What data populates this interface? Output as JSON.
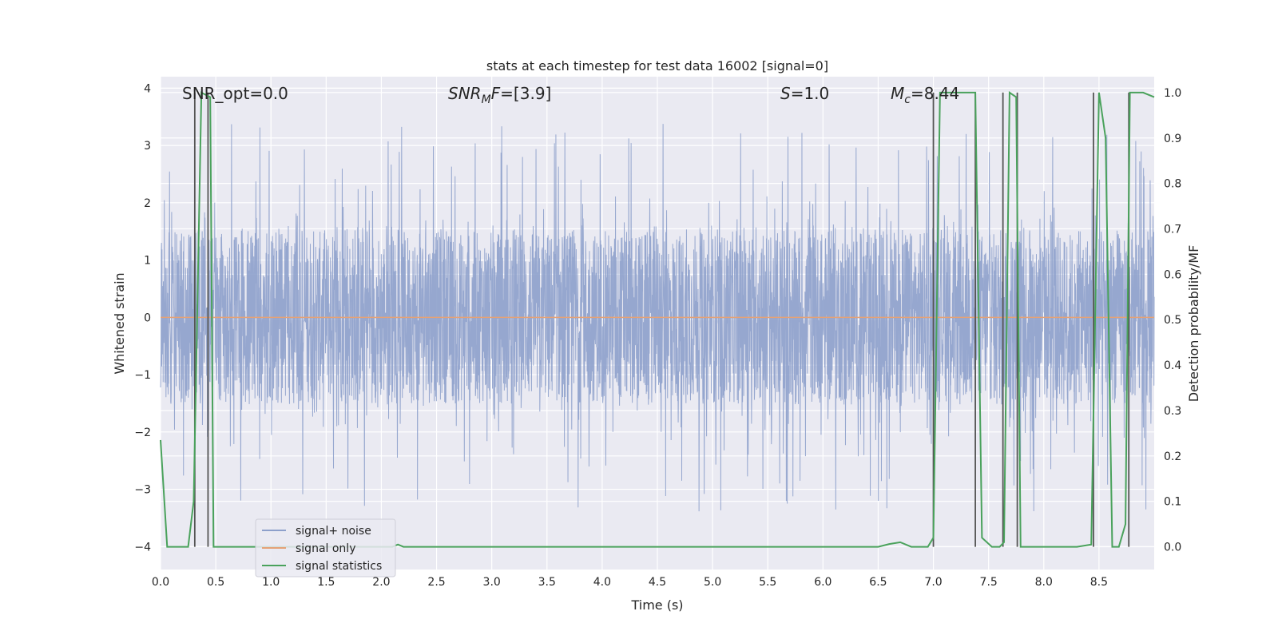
{
  "chart_data": {
    "type": "line",
    "title": "stats at each timestep for test data 16002 [signal=0]",
    "xlabel": "Time (s)",
    "ylabel_left": "Whitened strain",
    "ylabel_right": "Detection probability/MF",
    "xlim": [
      0,
      9
    ],
    "ylim_left": [
      -4.4,
      4.2
    ],
    "ylim_right": [
      -0.05,
      1.035
    ],
    "x_ticks": [
      "0.0",
      "0.5",
      "1.0",
      "1.5",
      "2.0",
      "2.5",
      "3.0",
      "3.5",
      "4.0",
      "4.5",
      "5.0",
      "5.5",
      "6.0",
      "6.5",
      "7.0",
      "7.5",
      "8.0",
      "8.5"
    ],
    "y_ticks_left": [
      "4",
      "3",
      "2",
      "1",
      "0",
      "−1",
      "−2",
      "−3",
      "−4"
    ],
    "y_ticks_right": [
      "1.0",
      "0.9",
      "0.8",
      "0.7",
      "0.6",
      "0.5",
      "0.4",
      "0.3",
      "0.2",
      "0.1",
      "0.0"
    ],
    "grid": true,
    "legend_position": "lower-left",
    "annotations": {
      "snr_opt": "SNR_opt=0.0",
      "snr_mf_main": "SNR",
      "snr_mf_sub": "M",
      "snr_mf_rest": "F=[3.9]",
      "s_italic": "S",
      "s_rest": "=1.0",
      "mc_main": "M",
      "mc_sub": "c",
      "mc_rest": "=8.44"
    },
    "series": [
      {
        "name": "signal+ noise",
        "color": "#8da0cb",
        "noise_band": [
          -1.5,
          1.5
        ],
        "peak_envelope": [
          -3.5,
          3.8
        ]
      },
      {
        "name": "signal only",
        "color": "#e5a276",
        "x": [
          0,
          9
        ],
        "y": [
          0,
          0
        ]
      },
      {
        "name": "signal statistics",
        "color": "#4aa25c",
        "x": [
          0.0,
          0.06,
          0.25,
          0.3,
          0.37,
          0.45,
          0.48,
          0.55,
          0.75,
          1.0,
          1.5,
          2.0,
          2.1,
          2.15,
          2.2,
          3.0,
          4.0,
          5.0,
          6.0,
          6.5,
          6.6,
          6.7,
          6.8,
          6.95,
          7.0,
          7.06,
          7.38,
          7.44,
          7.53,
          7.6,
          7.64,
          7.69,
          7.75,
          7.79,
          8.0,
          8.3,
          8.43,
          8.5,
          8.56,
          8.62,
          8.68,
          8.74,
          8.78,
          8.82,
          8.9,
          9.0
        ],
        "y": [
          0.235,
          0.0,
          0.0,
          0.1,
          1.0,
          0.99,
          0.0,
          0.0,
          0.0,
          0.0,
          0.0,
          0.0,
          0.0,
          0.005,
          0.0,
          0.0,
          0.0,
          0.0,
          0.0,
          0.0,
          0.006,
          0.01,
          0.0,
          0.0,
          0.02,
          1.0,
          1.0,
          0.02,
          0.0,
          0.0,
          0.01,
          1.0,
          0.99,
          0.0,
          0.0,
          0.0,
          0.005,
          1.0,
          0.9,
          0.0,
          0.0,
          0.05,
          1.0,
          1.0,
          1.0,
          0.99
        ]
      }
    ],
    "threshold_lines_x": [
      0.31,
      0.43,
      7.0,
      7.38,
      7.63,
      7.76,
      8.45,
      8.77
    ]
  }
}
